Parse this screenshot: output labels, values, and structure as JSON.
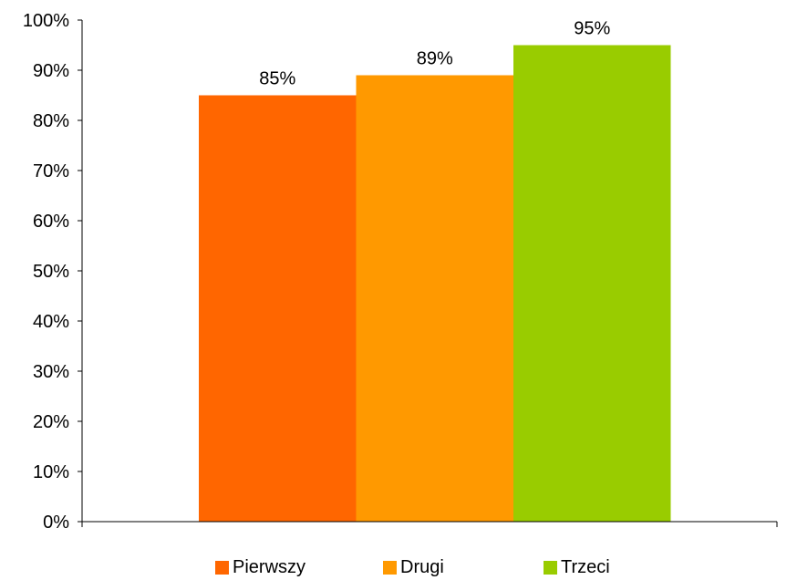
{
  "chart_data": {
    "type": "bar",
    "categories": [
      ""
    ],
    "series": [
      {
        "name": "Pierwszy",
        "values": [
          85
        ],
        "color": "#ff6600"
      },
      {
        "name": "Drugi",
        "values": [
          89
        ],
        "color": "#ff9900"
      },
      {
        "name": "Trzeci",
        "values": [
          95
        ],
        "color": "#99cc00"
      }
    ],
    "data_labels": [
      "85%",
      "89%",
      "95%"
    ],
    "title": "",
    "xlabel": "",
    "ylabel": "",
    "ylim": [
      0,
      100
    ],
    "yticks": [
      0,
      10,
      20,
      30,
      40,
      50,
      60,
      70,
      80,
      90,
      100
    ],
    "ytick_labels": [
      "0%",
      "10%",
      "20%",
      "30%",
      "40%",
      "50%",
      "60%",
      "70%",
      "80%",
      "90%",
      "100%"
    ],
    "grid": false,
    "legend_position": "bottom"
  }
}
